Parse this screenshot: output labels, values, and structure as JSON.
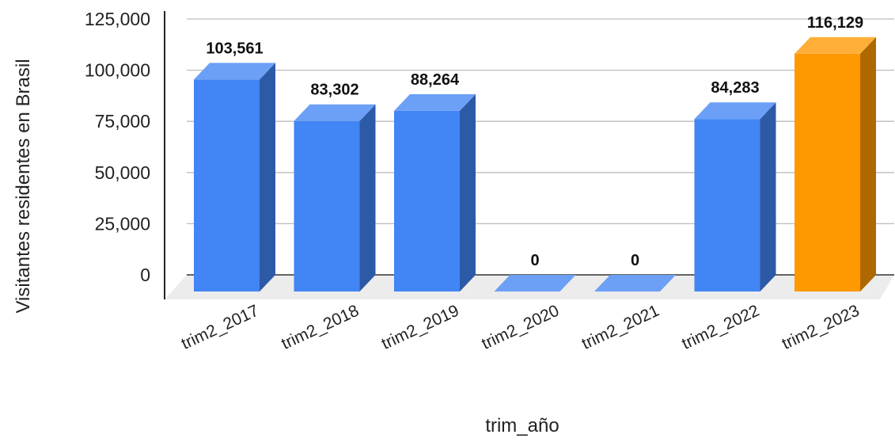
{
  "chart_data": {
    "type": "bar",
    "title": "",
    "xlabel": "trim_año",
    "ylabel": "Visitantes residentes en Brasil",
    "categories": [
      "trim2_2017",
      "trim2_2018",
      "trim2_2019",
      "trim2_2020",
      "trim2_2021",
      "trim2_2022",
      "trim2_2023"
    ],
    "values": [
      103561,
      83302,
      88264,
      0,
      0,
      84283,
      116129
    ],
    "value_labels": [
      "103,561",
      "83,302",
      "88,264",
      "0",
      "0",
      "84,283",
      "116,129"
    ],
    "yticks": [
      0,
      25000,
      50000,
      75000,
      100000,
      125000
    ],
    "ytick_labels": [
      "0",
      "25,000",
      "50,000",
      "75,000",
      "100,000",
      "125,000"
    ],
    "ylim": [
      0,
      125000
    ],
    "grid": true,
    "legend": "none",
    "style": "3d-bar",
    "colors": {
      "default_bar": "#4285f4",
      "highlight_bar": "#ff9900"
    },
    "highlight_index": 6
  }
}
